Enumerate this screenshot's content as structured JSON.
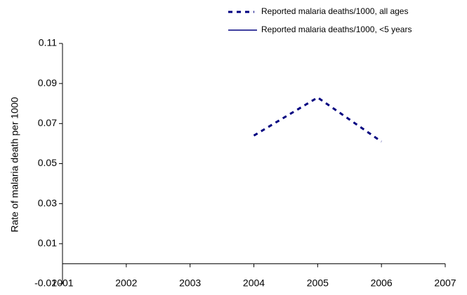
{
  "chart_data": {
    "type": "line",
    "y_label": "Rate of malaria death per 1000",
    "x": [
      2001,
      2002,
      2003,
      2004,
      2005,
      2006,
      2007
    ],
    "series": [
      {
        "name": "Reported malaria deaths/1000, all ages",
        "color": "#000080",
        "dash": true,
        "values": [
          null,
          null,
          null,
          0.064,
          0.083,
          0.061,
          null
        ]
      },
      {
        "name": "Reported malaria deaths/1000, <5 years",
        "color": "#000080",
        "dash": false,
        "values": [
          null,
          null,
          null,
          null,
          null,
          null,
          null
        ]
      }
    ],
    "xlim": [
      2001,
      2007
    ],
    "xticks": [
      2001,
      2002,
      2003,
      2004,
      2005,
      2006,
      2007
    ],
    "ylim": [
      -0.01,
      0.11
    ],
    "yticks": [
      -0.01,
      0.01,
      0.03,
      0.05,
      0.07,
      0.09,
      0.11
    ],
    "legend": "top-right"
  }
}
